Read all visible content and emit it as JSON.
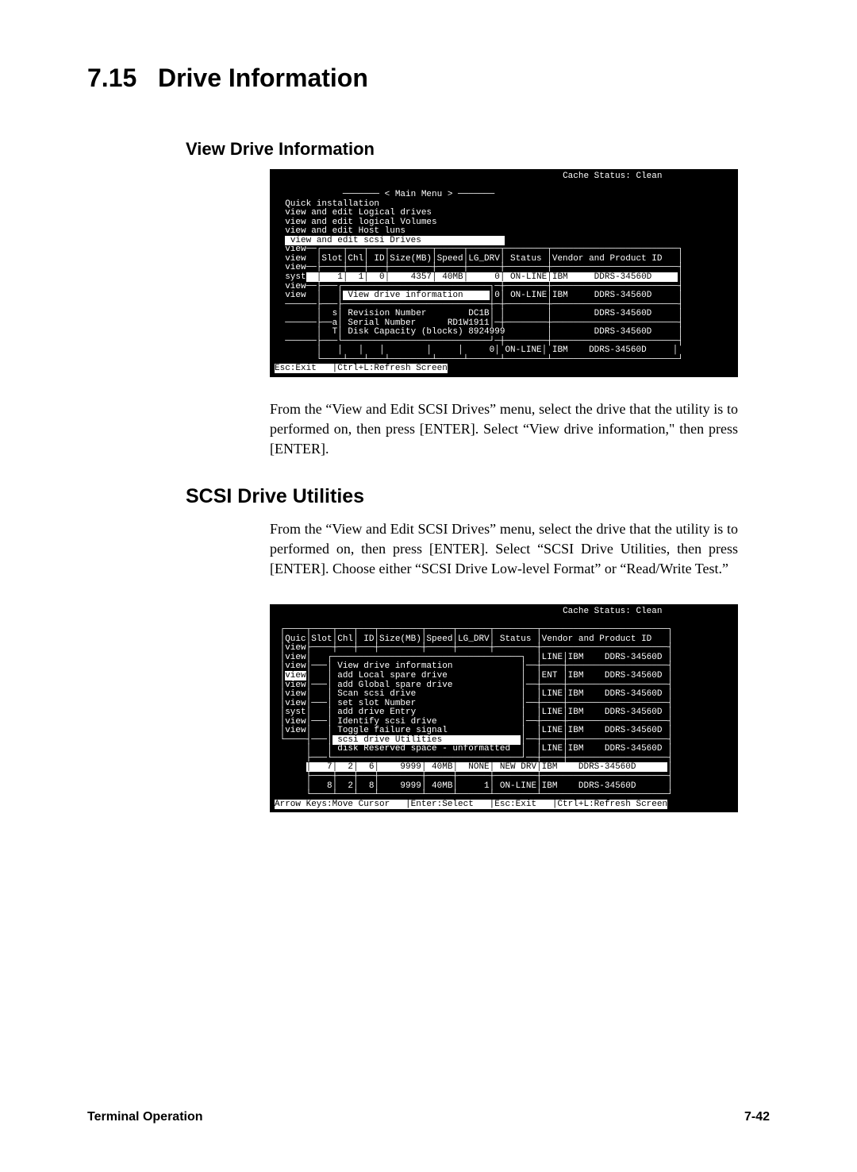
{
  "page": {
    "section_number": "7.15",
    "section_title": "Drive Information",
    "sub1_title": "View Drive Information",
    "sub2_title": "SCSI Drive Utilities",
    "para1": "From the “View and Edit SCSI Drives” menu, select the drive that the utility is to performed on, then press [ENTER]. Select “View drive information,\" then press [ENTER].",
    "para2": "From the “View and Edit SCSI Drives” menu, select the drive that the utility is to performed on, then press [ENTER]. Select “SCSI Drive Utilities, then press [ENTER]. Choose either “SCSI Drive Low-level Format” or “Read/Write Test.”",
    "footer_left": "Terminal Operation",
    "footer_right": "7-42"
  },
  "terminal1": {
    "cache_status": "Cache Status: Clean",
    "main_menu_label": "< Main Menu >",
    "menu_items": [
      "Quick installation",
      "view and edit Logical drives",
      "view and edit logical Volumes",
      "view and edit Host luns"
    ],
    "menu_item_selected": "view and edit scsi Drives",
    "left_col": [
      "view",
      "view",
      "view",
      "syst",
      "view",
      "view"
    ],
    "table_header": [
      "Slot",
      "Chl",
      "ID",
      "Size(MB)",
      "Speed",
      "LG_DRV",
      "Status",
      "Vendor and Product ID"
    ],
    "row1": {
      "slot": "1",
      "chl": "1",
      "id": "0",
      "size": "4357",
      "speed": "40MB",
      "lg": "0",
      "status": "ON-LINE",
      "vendor": "IBM",
      "product": "DDRS-34560D"
    },
    "popup_title": "View drive information",
    "popup_row_right": {
      "lg": "0",
      "status": "ON-LINE",
      "vendor": "IBM",
      "product": "DDRS-34560D"
    },
    "popup_items": [
      {
        "label": "Revision Number",
        "value": "DC1B"
      },
      {
        "label": "Serial Number",
        "value": "RD1W1911"
      },
      {
        "label": "Disk Capacity (blocks)",
        "value": "8924999"
      }
    ],
    "popup_side_rows": [
      {
        "product": "DDRS-34560D"
      },
      {
        "product": "DDRS-34560D"
      }
    ],
    "bottom_row": {
      "lg": "0",
      "status": "ON-LINE",
      "vendor": "IBM",
      "product": "DDRS-34560D"
    },
    "footer_hint": "Esc:Exit   |Ctrl+L:Refresh Screen"
  },
  "terminal2": {
    "cache_status": "Cache Status: Clean",
    "left_col": [
      "Quic",
      "view",
      "view",
      "view",
      "view",
      "view",
      "view",
      "syst",
      "view",
      "view"
    ],
    "table_header": [
      "Slot",
      "Chl",
      "ID",
      "Size(MB)",
      "Speed",
      "LG_DRV",
      "Status",
      "Vendor and Product ID"
    ],
    "left_selected": "view",
    "menu_items": [
      "View drive information",
      "add Local spare drive",
      "add Global spare drive",
      "Scan scsi drive",
      "set slot Number",
      "add drive Entry",
      "Identify scsi drive",
      "Toggle failure signal"
    ],
    "menu_selected": "scsi drive Utilities",
    "menu_last": "disk Reserved space - unformatted",
    "side_rows": [
      {
        "status": "LINE",
        "vendor": "IBM",
        "product": "DDRS-34560D"
      },
      {
        "status": "ENT",
        "vendor": "IBM",
        "product": "DDRS-34560D"
      },
      {
        "status": "LINE",
        "vendor": "IBM",
        "product": "DDRS-34560D"
      },
      {
        "status": "LINE",
        "vendor": "IBM",
        "product": "DDRS-34560D"
      },
      {
        "status": "LINE",
        "vendor": "IBM",
        "product": "DDRS-34560D"
      },
      {
        "status": "LINE",
        "vendor": "IBM",
        "product": "DDRS-34560D"
      }
    ],
    "bottom_rows": [
      {
        "slot": "7",
        "chl": "2",
        "id": "6",
        "size": "9999",
        "speed": "40MB",
        "lg": "NONE",
        "status": "NEW DRV",
        "vendor": "IBM",
        "product": "DDRS-34560D",
        "highlight": true
      },
      {
        "slot": "8",
        "chl": "2",
        "id": "8",
        "size": "9999",
        "speed": "40MB",
        "lg": "1",
        "status": "ON-LINE",
        "vendor": "IBM",
        "product": "DDRS-34560D",
        "highlight": false
      }
    ],
    "footer_hint": "Arrow Keys:Move Cursor   |Enter:Select   |Esc:Exit   |Ctrl+L:Refresh Screen"
  },
  "styling": {
    "page_bg": "#ffffff",
    "text_color": "#000000",
    "terminal_bg": "#000000",
    "terminal_fg": "#ffffff",
    "heading_font": "Arial",
    "body_font": "Georgia",
    "mono_font": "Courier New",
    "heading_size_pt": 24,
    "sub1_size_pt": 16,
    "sub2_size_pt": 18,
    "body_size_pt": 13,
    "terminal_size_pt": 8
  }
}
